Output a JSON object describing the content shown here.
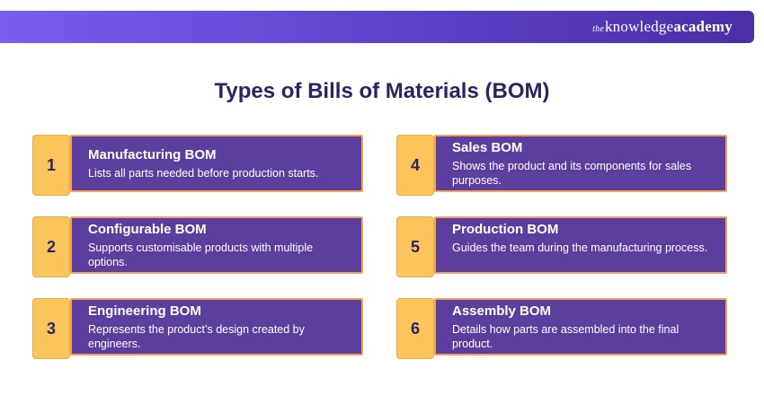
{
  "brand": {
    "prefix": "the",
    "main": "knowledge",
    "bold": "academy"
  },
  "title": "Types of Bills of Materials (BOM)",
  "items": [
    {
      "num": "1",
      "heading": "Manufacturing BOM",
      "desc": "Lists all parts needed before production starts."
    },
    {
      "num": "2",
      "heading": "Configurable BOM",
      "desc": "Supports customisable products with multiple options."
    },
    {
      "num": "3",
      "heading": "Engineering BOM",
      "desc": "Represents the product’s design created by engineers."
    },
    {
      "num": "4",
      "heading": "Sales BOM",
      "desc": "Shows the product and its components for sales purposes."
    },
    {
      "num": "5",
      "heading": "Production BOM",
      "desc": "Guides the team during the manufacturing process."
    },
    {
      "num": "6",
      "heading": "Assembly BOM",
      "desc": "Details how parts are assembled into the final product."
    }
  ]
}
